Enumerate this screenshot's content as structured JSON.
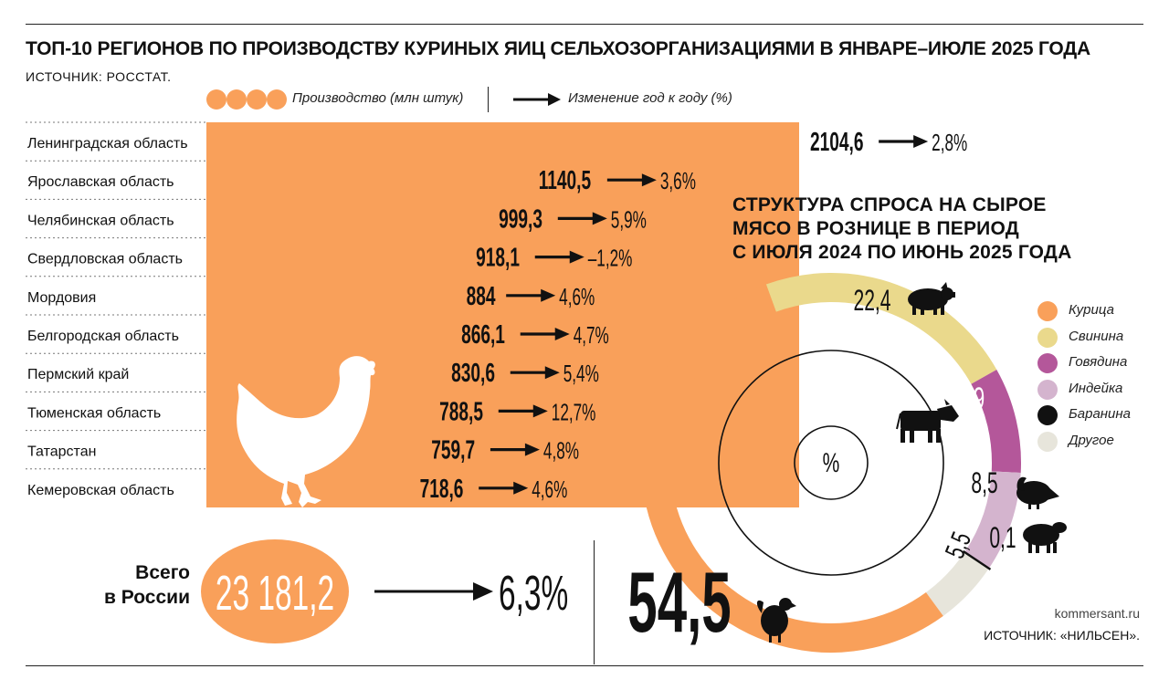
{
  "title": "ТОП-10 РЕГИОНОВ ПО ПРОИЗВОДСТВУ КУРИНЫХ ЯИЦ СЕЛЬХОЗОРГАНИЗАЦИЯМИ В ЯНВАРЕ–ИЮЛЕ 2025 ГОДА",
  "source": "ИСТОЧНИК: РОССТАТ.",
  "legend": {
    "production": "Производство (млн штук)",
    "change": "Изменение год к году (%)"
  },
  "colors": {
    "orange": "#F9A05A",
    "pork": "#EAD98C",
    "beef": "#B4579A",
    "turkey": "#D4B4CE",
    "lamb": "#111111",
    "other": "#E7E5DB"
  },
  "chart_data": [
    {
      "type": "bar",
      "title": "ТОП-10 РЕГИОНОВ ПО ПРОИЗВОДСТВУ КУРИНЫХ ЯИЦ СЕЛЬХОЗОРГАНИЗАЦИЯМИ В ЯНВАРЕ–ИЮЛЕ 2025 ГОДА",
      "orientation": "horizontal",
      "categories": [
        "Ленинградская область",
        "Ярославская область",
        "Челябинская область",
        "Свердловская область",
        "Мордовия",
        "Белгородская область",
        "Пермский край",
        "Тюменская область",
        "Татарстан",
        "Кемеровская область"
      ],
      "series": [
        {
          "name": "Производство (млн штук)",
          "values": [
            2104.6,
            1140.5,
            999.3,
            918.1,
            884,
            866.1,
            830.6,
            788.5,
            759.7,
            718.6
          ]
        },
        {
          "name": "Изменение год к году (%)",
          "values": [
            2.8,
            3.6,
            5.9,
            -1.2,
            4.6,
            4.7,
            5.4,
            12.7,
            4.8,
            4.6
          ]
        }
      ],
      "value_labels": [
        "2104,6",
        "1140,5",
        "999,3",
        "918,1",
        "884",
        "866,1",
        "830,6",
        "788,5",
        "759,7",
        "718,6"
      ],
      "change_labels": [
        "2,8%",
        "3,6%",
        "5,9%",
        "–1,2%",
        "4,6%",
        "4,7%",
        "5,4%",
        "12,7%",
        "4,8%",
        "4,6%"
      ],
      "total": {
        "label": "Всего в России",
        "value": 23181.2,
        "value_label": "23 181,2",
        "change": 6.3,
        "change_label": "6,3%"
      }
    },
    {
      "type": "pie",
      "title": "СТРУКТУРА СПРОСА НА СЫРОЕ МЯСО В РОЗНИЦЕ В ПЕРИОД С ИЮЛЯ 2024 ПО ИЮНЬ 2025 ГОДА",
      "unit": "%",
      "categories": [
        "Курица",
        "Свинина",
        "Говядина",
        "Индейка",
        "Баранина",
        "Другое"
      ],
      "values": [
        54.5,
        22.4,
        9,
        8.5,
        0.1,
        5.5
      ],
      "value_labels": [
        "54,5",
        "22,4",
        "9",
        "8,5",
        "0,1",
        "5,5"
      ],
      "legend_position": "right"
    }
  ],
  "right": {
    "title_lines": [
      "СТРУКТУРА СПРОСА НА СЫРОЕ",
      "МЯСО В РОЗНИЦЕ В ПЕРИОД",
      "С ИЮЛЯ 2024 ПО ИЮНЬ 2025 ГОДА"
    ],
    "center_label": "%"
  },
  "credits": {
    "site": "kommersant.ru",
    "source": "ИСТОЧНИК: «НИЛЬСЕН»."
  },
  "total_label_lines": [
    "Всего",
    "в России"
  ]
}
